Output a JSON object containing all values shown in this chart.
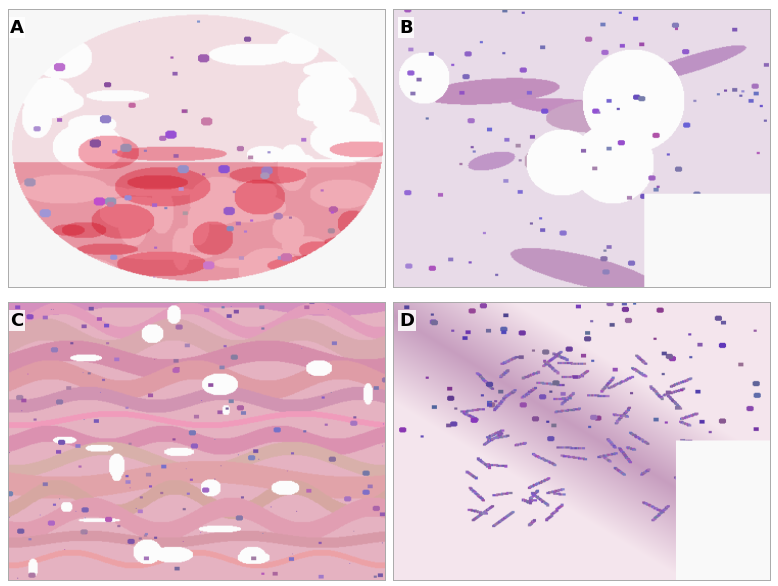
{
  "figure_width": 7.78,
  "figure_height": 5.86,
  "dpi": 100,
  "labels": [
    "A",
    "B",
    "C",
    "D"
  ],
  "label_fontsize": 13,
  "label_color": "black",
  "label_fontweight": "bold",
  "background_color": "#ffffff",
  "seed_A": 42,
  "seed_B": 123,
  "seed_C": 77,
  "seed_D": 200
}
